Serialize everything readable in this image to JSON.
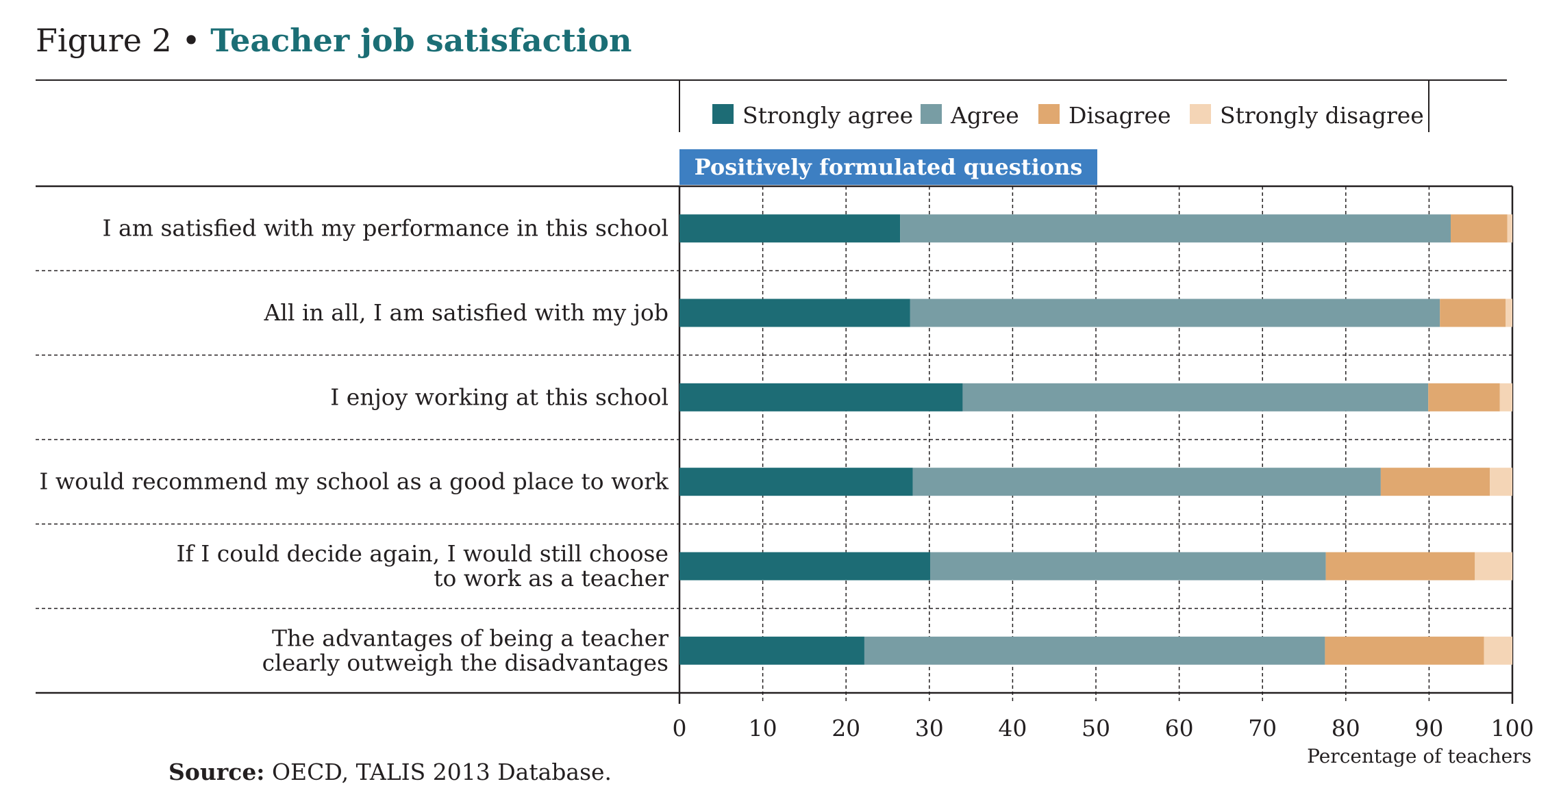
{
  "figure": {
    "prefix": "Figure 2",
    "bullet": "•",
    "title": "Teacher job satisfaction"
  },
  "source": {
    "label": "Source:",
    "text": "OECD, TALIS 2013 Database."
  },
  "chart_data": {
    "type": "bar",
    "orientation": "horizontal",
    "stacked": true,
    "section_header": "Positively formulated questions",
    "categories": [
      [
        "I am satisfied with my performance in this school"
      ],
      [
        "All in all, I am satisfied with my job"
      ],
      [
        "I enjoy working at this school"
      ],
      [
        "I would recommend my school as a good place to work"
      ],
      [
        "If I could decide again, I would still choose",
        "to work as a teacher"
      ],
      [
        "The advantages of being a teacher",
        "clearly outweigh the disadvantages"
      ]
    ],
    "series": [
      {
        "name": "Strongly agree",
        "color": "#1d6c75",
        "values": [
          26.5,
          27.7,
          34,
          28,
          30.1,
          22.2
        ]
      },
      {
        "name": "Agree",
        "color": "#789da4",
        "values": [
          66.1,
          63.6,
          55.9,
          56.2,
          47.5,
          55.3
        ]
      },
      {
        "name": "Disagree",
        "color": "#e0a870",
        "values": [
          6.8,
          7.9,
          8.6,
          13.1,
          17.9,
          19.1
        ]
      },
      {
        "name": "Strongly disagree",
        "color": "#f4d5b6",
        "values": [
          0.6,
          0.8,
          1.5,
          2.7,
          4.5,
          3.4
        ]
      }
    ],
    "xlim": [
      0,
      100
    ],
    "xticks": [
      0,
      10,
      20,
      30,
      40,
      50,
      60,
      70,
      80,
      90,
      100
    ],
    "xlabel": "Percentage of teachers",
    "ylabel": "",
    "grid": "vertical dashed",
    "legend_position": "top"
  }
}
